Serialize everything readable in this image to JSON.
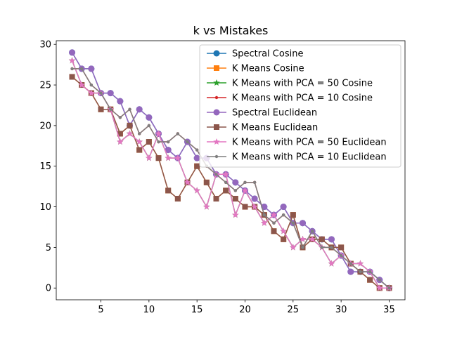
{
  "chart_data": {
    "type": "line",
    "title": "k vs Mistakes",
    "xlabel": "",
    "ylabel": "",
    "xlim": [
      0.35,
      36.65
    ],
    "ylim": [
      -1.45,
      30.45
    ],
    "xticks": [
      5,
      10,
      15,
      20,
      25,
      30,
      35
    ],
    "yticks": [
      0,
      5,
      10,
      15,
      20,
      25,
      30
    ],
    "grid": false,
    "legend_position": "upper right",
    "x": [
      2,
      3,
      4,
      5,
      6,
      7,
      8,
      9,
      10,
      11,
      12,
      13,
      14,
      15,
      16,
      17,
      18,
      19,
      20,
      21,
      22,
      23,
      24,
      25,
      26,
      27,
      28,
      29,
      30,
      31,
      32,
      33,
      34,
      35
    ],
    "series": [
      {
        "name": "Spectral Cosine",
        "color": "#1f77b4",
        "marker": "circle",
        "values": [
          29,
          27,
          27,
          24,
          24,
          23,
          20,
          22,
          21,
          19,
          17,
          16,
          18,
          16,
          16,
          14,
          14,
          13,
          12,
          11,
          10,
          9,
          10,
          8,
          8,
          7,
          6,
          6,
          4,
          2,
          2,
          2,
          1,
          0
        ]
      },
      {
        "name": "K Means Cosine",
        "color": "#ff7f0e",
        "marker": "square",
        "values": [
          26,
          25,
          24,
          22,
          22,
          19,
          20,
          17,
          18,
          16,
          12,
          11,
          13,
          15,
          13,
          11,
          12,
          11,
          10,
          10,
          9,
          7,
          6,
          9,
          5,
          6,
          6,
          5,
          5,
          3,
          2,
          1,
          0,
          0
        ]
      },
      {
        "name": "K Means with PCA = 50 Cosine",
        "color": "#2ca02c",
        "marker": "star",
        "values": [
          28,
          25,
          24,
          24,
          22,
          18,
          19,
          18,
          16,
          19,
          16,
          16,
          13,
          12,
          10,
          14,
          14,
          9,
          12,
          10,
          8,
          9,
          7,
          5,
          6,
          6,
          5,
          3,
          4,
          3,
          3,
          2,
          0,
          0
        ]
      },
      {
        "name": "K Means with PCA = 10 Cosine",
        "color": "#d62728",
        "marker": "dot",
        "values": [
          27,
          27,
          25,
          24,
          22,
          21,
          22,
          19,
          20,
          18,
          18,
          19,
          18,
          17,
          15,
          14,
          13,
          12,
          13,
          13,
          9,
          8,
          9,
          8,
          5,
          7,
          5,
          5,
          4,
          3,
          2,
          2,
          1,
          0
        ]
      },
      {
        "name": "Spectral Euclidean",
        "color": "#9467bd",
        "marker": "circle",
        "values": [
          29,
          27,
          27,
          24,
          24,
          23,
          20,
          22,
          21,
          19,
          17,
          16,
          18,
          16,
          16,
          14,
          14,
          13,
          12,
          11,
          10,
          9,
          10,
          8,
          8,
          7,
          6,
          6,
          4,
          2,
          2,
          2,
          1,
          0
        ]
      },
      {
        "name": "K Means Euclidean",
        "color": "#8c564b",
        "marker": "square",
        "values": [
          26,
          25,
          24,
          22,
          22,
          19,
          20,
          17,
          18,
          16,
          12,
          11,
          13,
          15,
          13,
          11,
          12,
          11,
          10,
          10,
          9,
          7,
          6,
          9,
          5,
          6,
          6,
          5,
          5,
          3,
          2,
          1,
          0,
          0
        ]
      },
      {
        "name": "K Means with PCA = 50 Euclidean",
        "color": "#e377c2",
        "marker": "star",
        "values": [
          28,
          25,
          24,
          24,
          22,
          18,
          19,
          18,
          16,
          19,
          16,
          16,
          13,
          12,
          10,
          14,
          14,
          9,
          12,
          10,
          8,
          9,
          7,
          5,
          6,
          6,
          5,
          3,
          4,
          3,
          3,
          2,
          0,
          0
        ]
      },
      {
        "name": "K Means with PCA = 10 Euclidean",
        "color": "#7f7f7f",
        "marker": "dot",
        "values": [
          27,
          27,
          25,
          24,
          22,
          21,
          22,
          19,
          20,
          18,
          18,
          19,
          18,
          17,
          15,
          14,
          13,
          12,
          13,
          13,
          9,
          8,
          9,
          8,
          5,
          7,
          5,
          5,
          4,
          3,
          2,
          2,
          1,
          0
        ]
      }
    ]
  }
}
